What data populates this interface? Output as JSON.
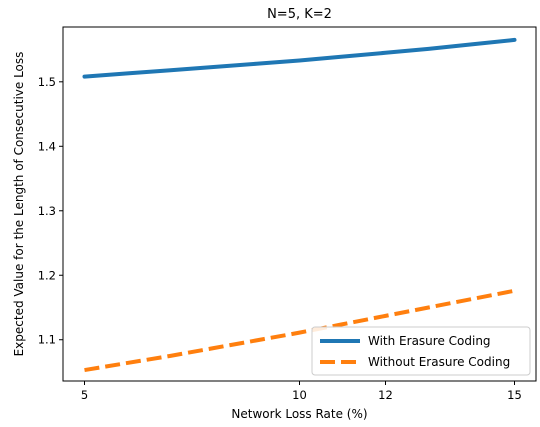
{
  "chart_data": {
    "type": "line",
    "title": "N=5, K=2",
    "xlabel": "Network Loss Rate (%)",
    "ylabel": "Expected Value for the Length of Consecutive Loss",
    "xlim": [
      4.5,
      15.5
    ],
    "ylim": [
      1.036,
      1.585
    ],
    "xticks": [
      5,
      10,
      12,
      15
    ],
    "yticks": [
      1.1,
      1.2,
      1.3,
      1.4,
      1.5
    ],
    "grid": false,
    "legend_position": "lower-right",
    "series": [
      {
        "name": "With Erasure Coding",
        "color": "#1f77b4",
        "line_style": "solid",
        "x": [
          5,
          6,
          7,
          8,
          9,
          10,
          11,
          12,
          13,
          14,
          15
        ],
        "y": [
          1.508,
          1.513,
          1.518,
          1.523,
          1.528,
          1.533,
          1.539,
          1.545,
          1.551,
          1.558,
          1.565
        ]
      },
      {
        "name": "Without Erasure Coding",
        "color": "#ff7f0e",
        "line_style": "dashed",
        "x": [
          5,
          6,
          7,
          8,
          9,
          10,
          11,
          12,
          13,
          14,
          15
        ],
        "y": [
          1.053,
          1.064,
          1.075,
          1.087,
          1.099,
          1.111,
          1.124,
          1.137,
          1.15,
          1.163,
          1.176
        ]
      }
    ]
  }
}
